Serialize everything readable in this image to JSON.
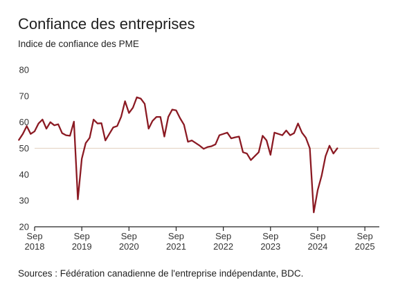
{
  "title": "Confiance des entreprises",
  "subtitle": "Indice de confiance des PME",
  "source": "Sources : Fédération canadienne de l'entreprise indépendante, BDC.",
  "colors": {
    "line": "#8b1a23",
    "axis": "#222222",
    "reference": "#e6d7c8"
  },
  "chart_data": {
    "type": "line",
    "title": "Confiance des entreprises",
    "subtitle": "Indice de confiance des PME",
    "xlabel": "",
    "ylabel": "",
    "ylim": [
      20,
      80
    ],
    "yticks": [
      20,
      30,
      40,
      50,
      60,
      70,
      80
    ],
    "reference_line": 50,
    "grid": false,
    "x_ticks": [
      {
        "date": "2018-09",
        "month": "Sep",
        "year": "2018"
      },
      {
        "date": "2019-09",
        "month": "Sep",
        "year": "2019"
      },
      {
        "date": "2020-09",
        "month": "Sep",
        "year": "2020"
      },
      {
        "date": "2021-09",
        "month": "Sep",
        "year": "2021"
      },
      {
        "date": "2022-09",
        "month": "Sep",
        "year": "2022"
      },
      {
        "date": "2023-09",
        "month": "Sep",
        "year": "2023"
      },
      {
        "date": "2024-09",
        "month": "Sep",
        "year": "2024"
      },
      {
        "date": "2025-09",
        "month": "Sep",
        "year": "2025"
      }
    ],
    "series": [
      {
        "values": [
          [
            "2018-05",
            53.2
          ],
          [
            "2018-06",
            55.5
          ],
          [
            "2018-07",
            58.5
          ],
          [
            "2018-08",
            55.5
          ],
          [
            "2018-09",
            56.5
          ],
          [
            "2018-10",
            59.5
          ],
          [
            "2018-11",
            61.0
          ],
          [
            "2018-12",
            57.5
          ],
          [
            "2019-01",
            60.0
          ],
          [
            "2019-02",
            58.8
          ],
          [
            "2019-03",
            59.2
          ],
          [
            "2019-04",
            55.8
          ],
          [
            "2019-05",
            55.0
          ],
          [
            "2019-06",
            54.8
          ],
          [
            "2019-07",
            60.2
          ],
          [
            "2019-08",
            30.5
          ],
          [
            "2019-09",
            46.0
          ],
          [
            "2019-10",
            52.0
          ],
          [
            "2019-11",
            54.0
          ],
          [
            "2019-12",
            61.0
          ],
          [
            "2020-01",
            59.5
          ],
          [
            "2020-02",
            59.6
          ],
          [
            "2020-03",
            53.0
          ],
          [
            "2020-04",
            55.5
          ],
          [
            "2020-05",
            58.0
          ],
          [
            "2020-06",
            58.5
          ],
          [
            "2020-07",
            62.0
          ],
          [
            "2020-08",
            68.0
          ],
          [
            "2020-09",
            63.5
          ],
          [
            "2020-10",
            65.5
          ],
          [
            "2020-11",
            69.5
          ],
          [
            "2020-12",
            69.0
          ],
          [
            "2021-01",
            67.0
          ],
          [
            "2021-02",
            57.5
          ],
          [
            "2021-03",
            60.5
          ],
          [
            "2021-04",
            62.0
          ],
          [
            "2021-05",
            62.0
          ],
          [
            "2021-06",
            54.5
          ],
          [
            "2021-07",
            62.0
          ],
          [
            "2021-08",
            64.8
          ],
          [
            "2021-09",
            64.5
          ],
          [
            "2021-10",
            61.5
          ],
          [
            "2021-11",
            59.0
          ],
          [
            "2021-12",
            52.5
          ],
          [
            "2022-01",
            53.0
          ],
          [
            "2022-02",
            52.0
          ],
          [
            "2022-03",
            51.0
          ],
          [
            "2022-04",
            49.8
          ],
          [
            "2022-05",
            50.5
          ],
          [
            "2022-06",
            50.8
          ],
          [
            "2022-07",
            51.5
          ],
          [
            "2022-08",
            55.0
          ],
          [
            "2022-09",
            55.5
          ],
          [
            "2022-10",
            56.0
          ],
          [
            "2022-11",
            53.8
          ],
          [
            "2022-12",
            54.2
          ],
          [
            "2023-01",
            54.5
          ],
          [
            "2023-02",
            48.5
          ],
          [
            "2023-03",
            48.0
          ],
          [
            "2023-04",
            45.5
          ],
          [
            "2023-05",
            47.0
          ],
          [
            "2023-06",
            48.5
          ],
          [
            "2023-07",
            54.8
          ],
          [
            "2023-08",
            53.0
          ],
          [
            "2023-09",
            47.5
          ],
          [
            "2023-10",
            56.0
          ],
          [
            "2023-11",
            55.5
          ],
          [
            "2023-12",
            55.0
          ],
          [
            "2024-01",
            56.8
          ],
          [
            "2024-02",
            55.0
          ],
          [
            "2024-03",
            55.8
          ],
          [
            "2024-04",
            59.5
          ],
          [
            "2024-05",
            56.0
          ],
          [
            "2024-06",
            54.0
          ],
          [
            "2024-07",
            50.0
          ],
          [
            "2024-08",
            25.5
          ],
          [
            "2024-09",
            34.0
          ],
          [
            "2024-10",
            39.5
          ],
          [
            "2024-11",
            47.0
          ],
          [
            "2024-12",
            51.0
          ],
          [
            "2025-01",
            48.0
          ],
          [
            "2025-02",
            50.0
          ]
        ]
      }
    ]
  }
}
